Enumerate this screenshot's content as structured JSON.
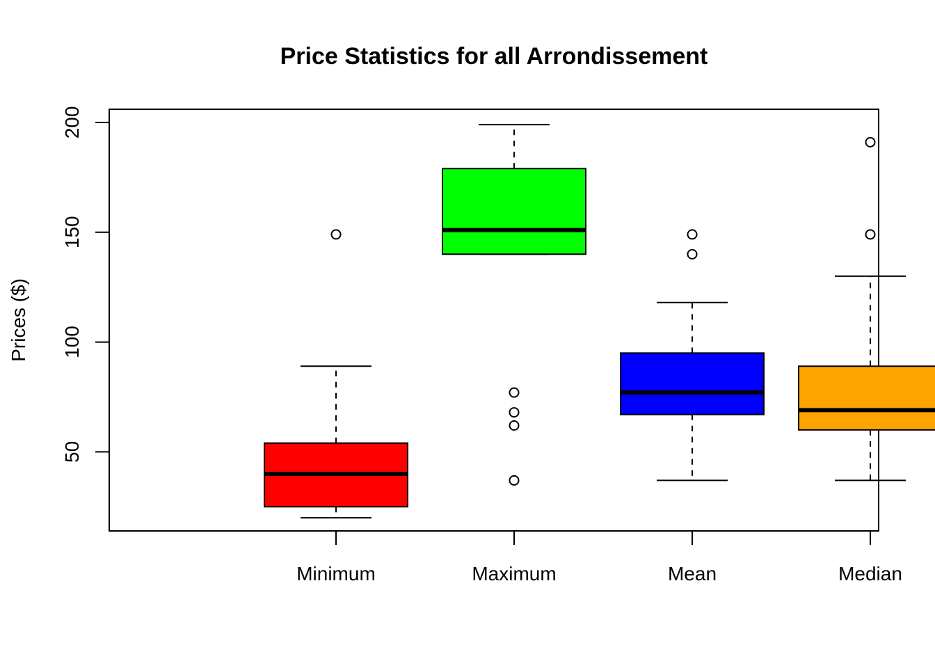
{
  "chart_data": {
    "type": "boxplot",
    "title": "Price Statistics for all Arrondissement",
    "xlabel": "",
    "ylabel": "Prices ($)",
    "ylim": [
      14,
      206
    ],
    "yticks": [
      50,
      100,
      150,
      200
    ],
    "grid": false,
    "legend": "none",
    "categories": [
      "Minimum",
      "Maximum",
      "Mean",
      "Median"
    ],
    "boxes": [
      {
        "category": "Minimum",
        "color": "#ff0000",
        "whisker_low": 20,
        "q1": 25,
        "median": 40,
        "q3": 54,
        "whisker_high": 89,
        "outliers": [
          149
        ]
      },
      {
        "category": "Maximum",
        "color": "#00ff00",
        "whisker_low": 140,
        "q1": 140,
        "median": 151,
        "q3": 179,
        "whisker_high": 199,
        "outliers": [
          77,
          68,
          62,
          37
        ]
      },
      {
        "category": "Mean",
        "color": "#0000ff",
        "whisker_low": 37,
        "q1": 67,
        "median": 77,
        "q3": 95,
        "whisker_high": 118,
        "outliers": [
          149,
          140
        ]
      },
      {
        "category": "Median",
        "color": "#ffa500",
        "whisker_low": 37,
        "q1": 60,
        "median": 69,
        "q3": 89,
        "whisker_high": 130,
        "outliers": [
          191,
          149
        ]
      }
    ]
  }
}
